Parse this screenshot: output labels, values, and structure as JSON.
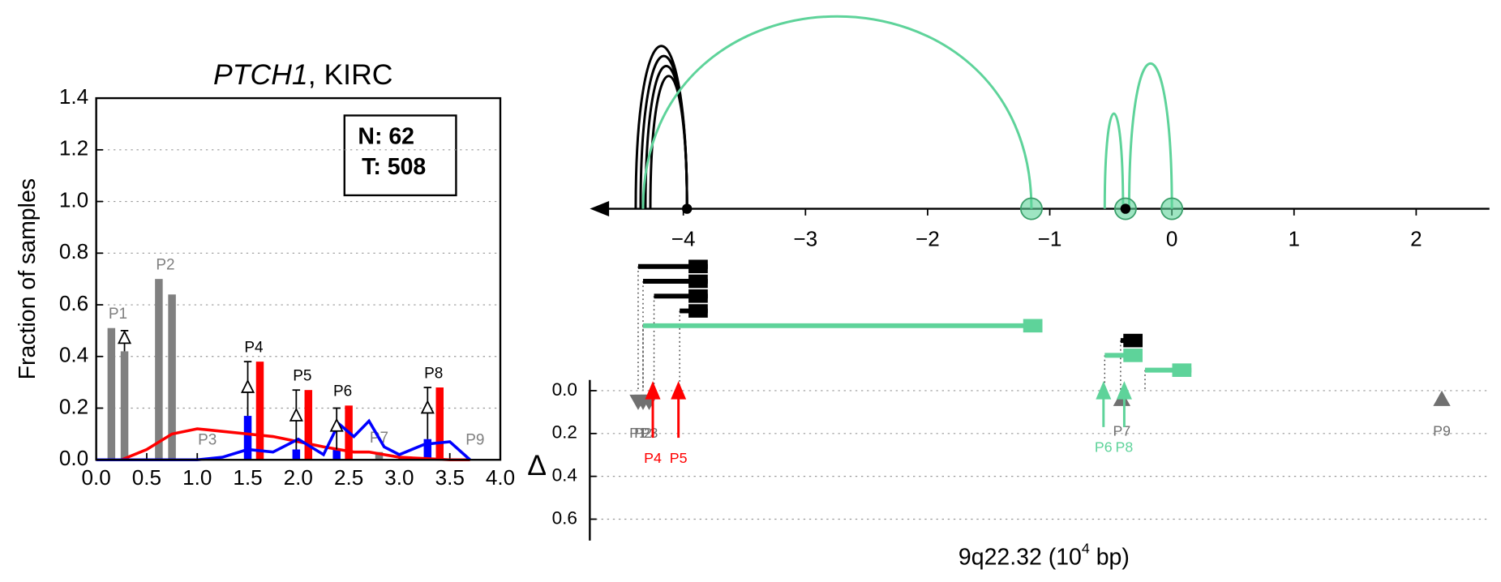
{
  "chart_data": [
    {
      "type": "bar",
      "title": [
        "PTCH1",
        ", KIRC"
      ],
      "ylabel": "Fraction of samples",
      "annotations": [
        "N: 62",
        "T: 508"
      ],
      "xlim": [
        0,
        4
      ],
      "ylim": [
        0,
        1.4
      ],
      "xticks": [
        {
          "value": 0,
          "label": "0.0"
        },
        {
          "value": 0.5,
          "label": "0.5"
        },
        {
          "value": 1,
          "label": "1.0"
        },
        {
          "value": 1.5,
          "label": "1.5"
        },
        {
          "value": 2,
          "label": "2.0"
        },
        {
          "value": 2.5,
          "label": "2.5"
        },
        {
          "value": 3,
          "label": "3.0"
        },
        {
          "value": 3.5,
          "label": "3.5"
        },
        {
          "value": 4,
          "label": "4.0"
        }
      ],
      "yticks": [
        {
          "value": 0,
          "label": "0.0"
        },
        {
          "value": 0.2,
          "label": "0.2"
        },
        {
          "value": 0.4,
          "label": "0.4"
        },
        {
          "value": 0.6,
          "label": "0.6"
        },
        {
          "value": 0.8,
          "label": "0.8"
        },
        {
          "value": 1,
          "label": "1.0"
        },
        {
          "value": 1.2,
          "label": "1.2"
        },
        {
          "value": 1.4,
          "label": "1.4"
        }
      ],
      "grid": true,
      "groups": [
        {
          "name": "P1",
          "label_color": "#808080",
          "bars": [
            {
              "x": 0.15,
              "value": 0.51,
              "color": "#808080"
            },
            {
              "x": 0.28,
              "value": 0.42,
              "color": "#808080"
            }
          ]
        },
        {
          "name": "P2",
          "label_color": "#808080",
          "bars": [
            {
              "x": 0.62,
              "value": 0.7,
              "color": "#808080"
            },
            {
              "x": 0.75,
              "value": 0.64,
              "color": "#808080"
            }
          ]
        },
        {
          "name": "P3",
          "label_color": "#808080",
          "bars": [
            {
              "x": 1.1,
              "value": 0,
              "color": "#808080"
            }
          ]
        },
        {
          "name": "P4",
          "label_color": "#000000",
          "bars": [
            {
              "x": 1.5,
              "value": 0.17,
              "color": "#0000ff"
            },
            {
              "x": 1.62,
              "value": 0.38,
              "color": "#ff0000"
            }
          ]
        },
        {
          "name": "P5",
          "label_color": "#000000",
          "bars": [
            {
              "x": 1.98,
              "value": 0.04,
              "color": "#0000ff"
            },
            {
              "x": 2.1,
              "value": 0.27,
              "color": "#ff0000"
            }
          ]
        },
        {
          "name": "P6",
          "label_color": "#000000",
          "bars": [
            {
              "x": 2.38,
              "value": 0.04,
              "color": "#0000ff"
            },
            {
              "x": 2.5,
              "value": 0.21,
              "color": "#ff0000"
            }
          ]
        },
        {
          "name": "P7",
          "label_color": "#808080",
          "bars": [
            {
              "x": 2.8,
              "value": 0.03,
              "color": "#808080"
            }
          ]
        },
        {
          "name": "P8",
          "label_color": "#000000",
          "bars": [
            {
              "x": 3.28,
              "value": 0.08,
              "color": "#0000ff"
            },
            {
              "x": 3.4,
              "value": 0.28,
              "color": "#ff0000"
            }
          ]
        },
        {
          "name": "P9",
          "label_color": "#808080",
          "bars": [
            {
              "x": 3.75,
              "value": 0,
              "color": "#808080"
            }
          ]
        }
      ],
      "whiskers": [
        {
          "x": 0.28,
          "low": 0.42,
          "high": 0.5,
          "marker": 0.47
        },
        {
          "x": 1.5,
          "low": 0.17,
          "high": 0.38,
          "marker": 0.28
        },
        {
          "x": 1.98,
          "low": 0.04,
          "high": 0.27,
          "marker": 0.17
        },
        {
          "x": 2.38,
          "low": 0.04,
          "high": 0.2,
          "marker": 0.13
        },
        {
          "x": 3.28,
          "low": 0.08,
          "high": 0.28,
          "marker": 0.2
        }
      ],
      "x": [
        0,
        0.25,
        0.5,
        0.75,
        1,
        1.25,
        1.5,
        1.75,
        2,
        2.25,
        2.4,
        2.55,
        2.7,
        2.85,
        3,
        3.25,
        3.5,
        3.7
      ],
      "series": [
        {
          "color": "#ff0000",
          "values": [
            0,
            0,
            0.04,
            0.1,
            0.12,
            0.11,
            0.1,
            0.09,
            0.07,
            0.05,
            0.04,
            0.03,
            0.03,
            0.02,
            0.01,
            0.005,
            0,
            0
          ]
        },
        {
          "color": "#0000ff",
          "values": [
            0,
            0,
            0,
            0,
            0,
            0.01,
            0.04,
            0.03,
            0.08,
            0.02,
            0.14,
            0.09,
            0.15,
            0.05,
            0.02,
            0.06,
            0.07,
            0
          ]
        }
      ]
    },
    {
      "type": "arc",
      "xlabel": [
        "9q22.32 (10",
        "4",
        " bp)"
      ],
      "xlim": [
        -4.75,
        2.6
      ],
      "xticks": [
        {
          "value": -4,
          "label": "−4"
        },
        {
          "value": -3,
          "label": "−3"
        },
        {
          "value": -2,
          "label": "−2"
        },
        {
          "value": -1,
          "label": "−1"
        },
        0,
        1,
        2
      ],
      "arcs": [
        {
          "start": -4.39,
          "end": -3.97,
          "color": "#000000"
        },
        {
          "start": -4.35,
          "end": -3.97,
          "color": "#000000"
        },
        {
          "start": -4.31,
          "end": -3.97,
          "color": "#000000"
        },
        {
          "start": -4.27,
          "end": -3.97,
          "color": "#000000"
        },
        {
          "start": -4.33,
          "end": -1.15,
          "color": "#5ed39a"
        },
        {
          "start": -0.55,
          "end": -0.4,
          "color": "#5ed39a"
        },
        {
          "start": -0.35,
          "end": 0,
          "color": "#5ed39a"
        }
      ],
      "anchors": [
        {
          "x": -3.97,
          "color": "#000000"
        },
        {
          "x": -1.15,
          "color": "#5ed39a"
        },
        {
          "x": -0.38,
          "color": "#5ed39a"
        },
        {
          "x": -0.38,
          "color": "#000000"
        },
        {
          "x": 0,
          "color": "#5ed39a"
        }
      ],
      "segments": [
        {
          "start": -4.37,
          "end": -3.8,
          "color": "#000000"
        },
        {
          "start": -4.33,
          "end": -3.8,
          "color": "#000000"
        },
        {
          "start": -4.24,
          "end": -3.8,
          "color": "#000000"
        },
        {
          "start": -4.03,
          "end": -3.8,
          "color": "#000000"
        },
        {
          "start": -4.33,
          "end": -1.06,
          "color": "#5ed39a"
        },
        {
          "start": -0.42,
          "end": -0.24,
          "color": "#000000"
        },
        {
          "start": -0.55,
          "end": -0.24,
          "color": "#5ed39a"
        },
        {
          "start": -0.22,
          "end": 0.16,
          "color": "#5ed39a"
        }
      ],
      "delta": {
        "ylabel": "Δ",
        "ylim": [
          -0.05,
          0.7
        ],
        "inverted": true,
        "grid": true,
        "yticks": [
          {
            "value": 0,
            "label": "0.0"
          },
          {
            "value": 0.2,
            "label": "0.2"
          },
          {
            "value": 0.4,
            "label": "0.4"
          },
          {
            "value": 0.6,
            "label": "0.6"
          }
        ],
        "markers": [
          {
            "name": "P1",
            "x": -4.37,
            "delta": 0.05,
            "color": "#707070",
            "shape": "triangle-down"
          },
          {
            "name": "P2",
            "x": -4.33,
            "delta": 0.05,
            "color": "#707070",
            "shape": "triangle-down"
          },
          {
            "name": "P3",
            "x": -4.28,
            "delta": 0.05,
            "color": "#707070",
            "shape": "triangle-down"
          },
          {
            "name": "P4",
            "x": -4.25,
            "delta": 0.22,
            "color": "#ff0000",
            "shape": "arrow"
          },
          {
            "name": "P5",
            "x": -4.04,
            "delta": 0.22,
            "color": "#ff0000",
            "shape": "arrow"
          },
          {
            "name": "P6",
            "x": -0.56,
            "delta": 0.17,
            "color": "#5ed39a",
            "shape": "arrow"
          },
          {
            "name": "P7",
            "x": -0.41,
            "delta": 0.04,
            "color": "#707070",
            "shape": "triangle-up"
          },
          {
            "name": "P8",
            "x": -0.39,
            "delta": 0.17,
            "color": "#5ed39a",
            "shape": "arrow"
          },
          {
            "name": "P9",
            "x": 2.21,
            "delta": 0.04,
            "color": "#707070",
            "shape": "triangle-up"
          }
        ]
      }
    }
  ]
}
